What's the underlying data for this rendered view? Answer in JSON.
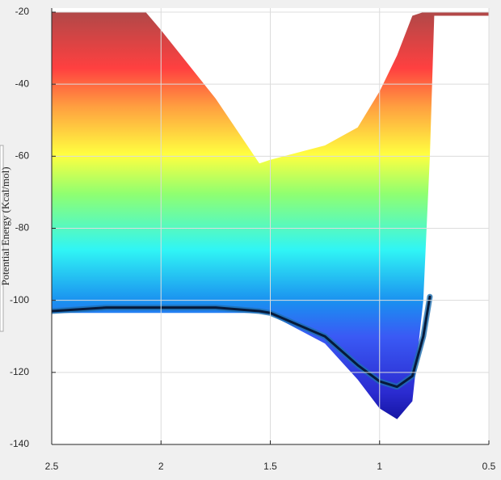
{
  "chart_data": {
    "type": "line",
    "y_label": "Potential Energy (Kcal/mol)",
    "x": [
      2.5,
      2.25,
      2.07,
      2,
      1.75,
      1.55,
      1.5,
      1.25,
      1.1,
      1,
      0.92,
      0.85,
      0.8,
      0.77,
      0.75,
      0.72,
      0.5
    ],
    "series": [
      {
        "values": [
          -20,
          -20,
          -20,
          -25,
          -44,
          -62,
          -61,
          -57,
          -52,
          -42,
          -32,
          -21,
          -20,
          -20,
          -20,
          -20,
          -20
        ]
      },
      {
        "values": [
          -103.5,
          -103.5,
          -103.5,
          -103.5,
          -103.5,
          -103.5,
          -104,
          -112,
          -122,
          -130,
          -133,
          -128,
          -100,
          -60,
          -21,
          -21,
          -21
        ]
      },
      {
        "color": "#061a3a",
        "values": [
          -103,
          -102,
          -102,
          -102,
          -102,
          -103,
          -103.5,
          -110,
          -118,
          -122.5,
          -124,
          -121,
          -110,
          -99,
          null,
          null,
          null
        ]
      }
    ],
    "xlim": [
      2.5,
      0.5
    ],
    "xticks": [
      2.5,
      2,
      1.5,
      1,
      0.5
    ],
    "ylim": [
      -140,
      -20
    ],
    "yticks": [
      -20,
      -40,
      -60,
      -80,
      -100,
      -120,
      -140
    ],
    "grid": true
  }
}
